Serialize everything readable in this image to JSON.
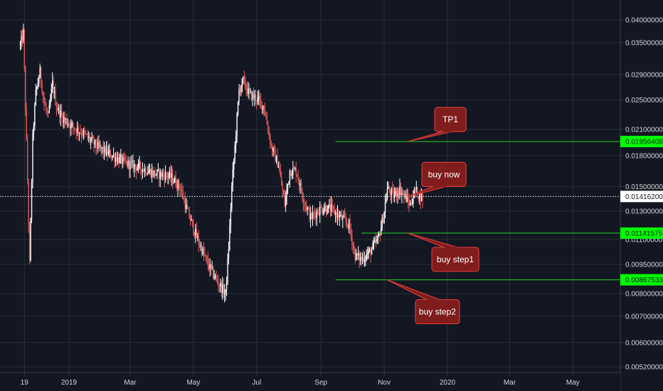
{
  "chart_data": {
    "type": "candlestick",
    "scale": "log",
    "grid": true,
    "colors": {
      "background": "#131722",
      "grid": "#2a2e39",
      "up": "#ffffff",
      "down": "#e05a5a",
      "level_line": "#22d322",
      "level_tag": "#00ff00",
      "current_price_line": "#ffffff",
      "callout_fill": "#7f1d1d",
      "callout_border": "#d63a3a"
    },
    "y_ticks": [
      "0.04000000",
      "0.03500000",
      "0.02900000",
      "0.02500000",
      "0.02100000",
      "0.01800000",
      "0.01500000",
      "0.01300000",
      "0.01100000",
      "0.00950000",
      "0.00800000",
      "0.00700000",
      "0.00600000",
      "0.00520000"
    ],
    "x_ticks": [
      "19",
      "2019",
      "Mar",
      "May",
      "Jul",
      "Sep",
      "Nov",
      "2020",
      "Mar",
      "May"
    ],
    "ylim": [
      0.005,
      0.043
    ],
    "xlim": [
      "2018-11-10",
      "2020-06-30"
    ],
    "current_price": "0.01416200",
    "levels": [
      {
        "name": "TP1",
        "value": "0.01956408",
        "from": "2019-09-15",
        "to_edge": true
      },
      {
        "name": "buy step1",
        "value": "0.01141575",
        "from": "2019-10-10",
        "to_edge": true
      },
      {
        "name": "buy step2",
        "value": "0.00867533",
        "from": "2019-09-15",
        "to_edge": true
      }
    ],
    "callouts": [
      {
        "text": "TP1",
        "anchor_date": "2019-11-25",
        "anchor_value": 0.01956
      },
      {
        "text": "buy now",
        "anchor_date": "2019-11-25",
        "anchor_value": 0.01416
      },
      {
        "text": "buy step1",
        "anchor_date": "2019-11-25",
        "anchor_value": 0.01142
      },
      {
        "text": "buy step2",
        "anchor_date": "2019-11-05",
        "anchor_value": 0.00868
      }
    ],
    "keypoints": [
      [
        "2018-11-15",
        0.0345
      ],
      [
        "2018-11-18",
        0.037
      ],
      [
        "2018-11-20",
        0.024
      ],
      [
        "2018-11-22",
        0.0155
      ],
      [
        "2018-11-24",
        0.0095
      ],
      [
        "2018-11-27",
        0.02
      ],
      [
        "2018-11-30",
        0.026
      ],
      [
        "2018-12-04",
        0.0295
      ],
      [
        "2018-12-08",
        0.0245
      ],
      [
        "2018-12-12",
        0.0225
      ],
      [
        "2018-12-16",
        0.0275
      ],
      [
        "2018-12-20",
        0.024
      ],
      [
        "2018-12-26",
        0.0225
      ],
      [
        "2019-01-03",
        0.0215
      ],
      [
        "2019-01-15",
        0.0205
      ],
      [
        "2019-01-28",
        0.019
      ],
      [
        "2019-02-12",
        0.018
      ],
      [
        "2019-02-25",
        0.0172
      ],
      [
        "2019-03-10",
        0.0168
      ],
      [
        "2019-03-25",
        0.0162
      ],
      [
        "2019-04-08",
        0.016
      ],
      [
        "2019-04-18",
        0.015
      ],
      [
        "2019-04-25",
        0.013
      ],
      [
        "2019-05-05",
        0.011
      ],
      [
        "2019-05-15",
        0.0095
      ],
      [
        "2019-05-25",
        0.0085
      ],
      [
        "2019-06-01",
        0.008
      ],
      [
        "2019-06-04",
        0.0105
      ],
      [
        "2019-06-07",
        0.015
      ],
      [
        "2019-06-10",
        0.019
      ],
      [
        "2019-06-14",
        0.0265
      ],
      [
        "2019-06-18",
        0.028
      ],
      [
        "2019-06-24",
        0.0258
      ],
      [
        "2019-07-01",
        0.0252
      ],
      [
        "2019-07-08",
        0.024
      ],
      [
        "2019-07-15",
        0.019
      ],
      [
        "2019-07-22",
        0.017
      ],
      [
        "2019-07-28",
        0.0135
      ],
      [
        "2019-08-02",
        0.0165
      ],
      [
        "2019-08-08",
        0.0165
      ],
      [
        "2019-08-15",
        0.014
      ],
      [
        "2019-08-22",
        0.0125
      ],
      [
        "2019-09-01",
        0.0132
      ],
      [
        "2019-09-10",
        0.0132
      ],
      [
        "2019-09-20",
        0.0125
      ],
      [
        "2019-09-28",
        0.012
      ],
      [
        "2019-10-04",
        0.01
      ],
      [
        "2019-10-10",
        0.0098
      ],
      [
        "2019-10-18",
        0.0102
      ],
      [
        "2019-10-26",
        0.011
      ],
      [
        "2019-10-31",
        0.0125
      ],
      [
        "2019-11-04",
        0.0148
      ],
      [
        "2019-11-10",
        0.0142
      ],
      [
        "2019-11-16",
        0.0148
      ],
      [
        "2019-11-22",
        0.014
      ],
      [
        "2019-11-26",
        0.0135
      ],
      [
        "2019-12-01",
        0.0147
      ],
      [
        "2019-12-05",
        0.0142
      ],
      [
        "2019-12-08",
        0.0141
      ]
    ]
  }
}
